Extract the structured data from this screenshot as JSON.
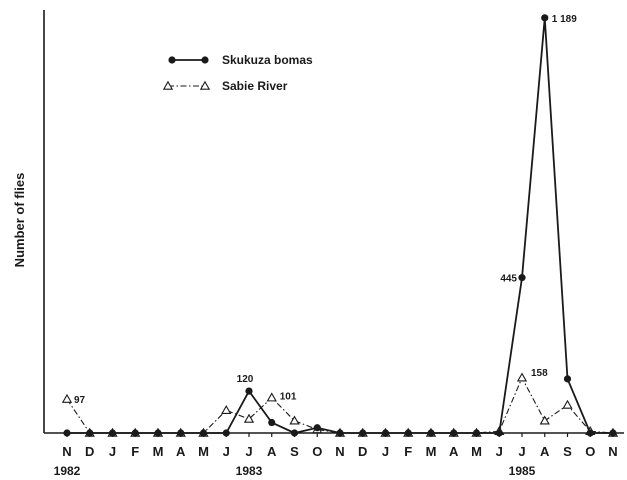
{
  "chart_data": {
    "type": "line",
    "title": "",
    "ylabel": "Number of flies",
    "xlabel": "",
    "ylim": [
      0,
      1200
    ],
    "categories": [
      "N",
      "D",
      "J",
      "F",
      "M",
      "A",
      "M",
      "J",
      "J",
      "A",
      "S",
      "O",
      "N",
      "D",
      "J",
      "F",
      "M",
      "A",
      "M",
      "J",
      "J",
      "A",
      "S",
      "O",
      "N"
    ],
    "year_labels": [
      {
        "text": "1982",
        "index": 0
      },
      {
        "text": "1983",
        "index": 8
      },
      {
        "text": "1985",
        "index": 20
      }
    ],
    "series": [
      {
        "name": "Skukuza bomas",
        "style": "solid-filled-circle",
        "color": "#1a1a1a",
        "values": [
          0,
          0,
          0,
          0,
          0,
          0,
          0,
          0,
          120,
          30,
          0,
          15,
          0,
          0,
          0,
          0,
          0,
          0,
          0,
          0,
          445,
          1189,
          155,
          0,
          0
        ]
      },
      {
        "name": "Sabie River",
        "style": "dashdot-open-triangle",
        "color": "#1a1a1a",
        "values": [
          97,
          0,
          0,
          0,
          0,
          0,
          0,
          65,
          40,
          101,
          35,
          10,
          0,
          0,
          0,
          0,
          0,
          0,
          0,
          5,
          158,
          35,
          80,
          5,
          0
        ]
      }
    ],
    "annotations": [
      {
        "text": "97",
        "series": 1,
        "index": 0
      },
      {
        "text": "120",
        "series": 0,
        "index": 8
      },
      {
        "text": "101",
        "series": 1,
        "index": 9
      },
      {
        "text": "445",
        "series": 0,
        "index": 20
      },
      {
        "text": "1 189",
        "series": 0,
        "index": 21
      },
      {
        "text": "158",
        "series": 1,
        "index": 20
      }
    ],
    "legend": "top-left",
    "grid": false
  }
}
